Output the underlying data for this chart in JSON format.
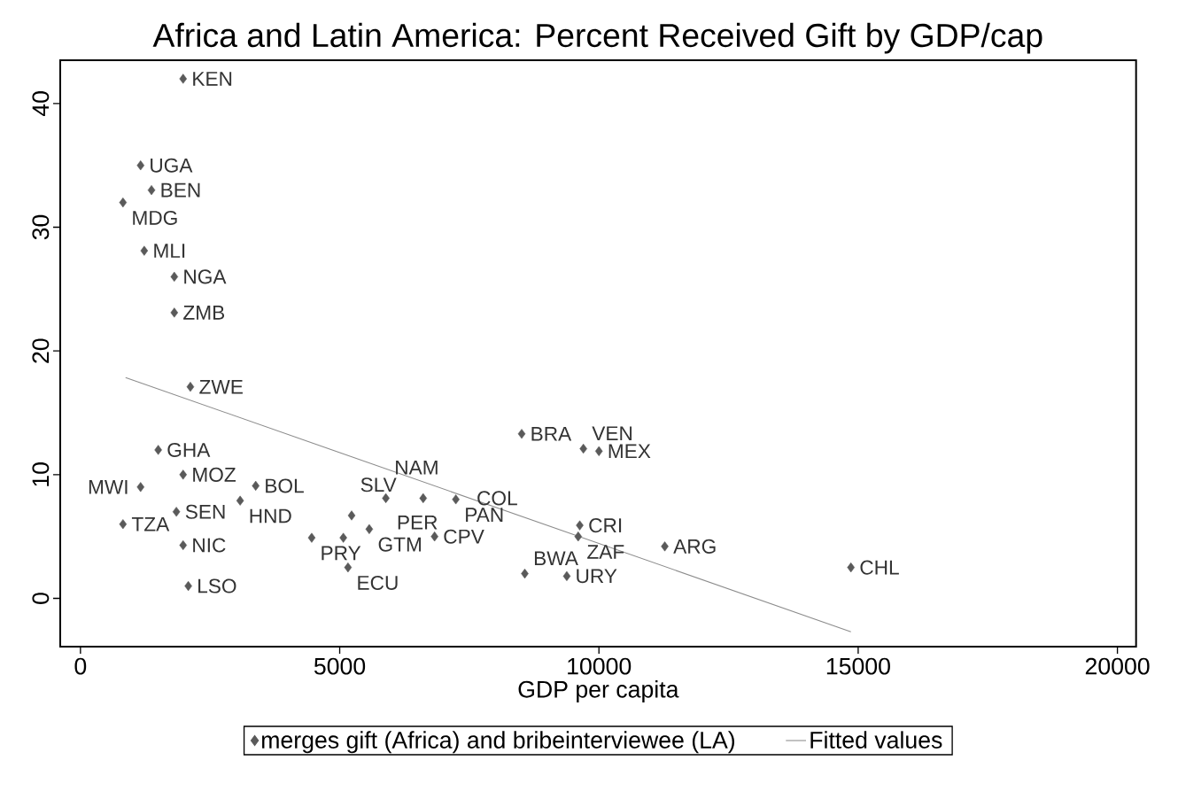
{
  "chart_data": {
    "type": "scatter",
    "title": "Africa and Latin America: Percent Received Gift by GDP/cap",
    "xlabel": "GDP per capita",
    "xlim": [
      -390,
      20360
    ],
    "ylim": [
      -3.9,
      43.5
    ],
    "xticks": [
      0,
      5000,
      10000,
      15000,
      20000
    ],
    "yticks": [
      0,
      10,
      20,
      30,
      40
    ],
    "legend": "bottom",
    "marker": "diamond",
    "series": [
      {
        "name": "merges gift (Africa) and bribeinterviewee (LA)",
        "color": "#5a5a5a",
        "x": [
          1980,
          1160,
          1370,
          820,
          1230,
          1810,
          1810,
          2120,
          1500,
          1980,
          1160,
          3380,
          3080,
          1850,
          820,
          1980,
          2080,
          4460,
          5070,
          5570,
          5230,
          5160,
          5890,
          6610,
          7240,
          6830,
          8510,
          9700,
          10000,
          9630,
          9600,
          11270,
          8570,
          9380,
          14860
        ],
        "values": [
          42.0,
          35.0,
          33.0,
          32.0,
          28.1,
          26.0,
          23.1,
          17.1,
          12.0,
          10.0,
          9.0,
          9.1,
          7.9,
          7.0,
          6.0,
          4.3,
          1.0,
          4.9,
          4.9,
          5.6,
          6.7,
          2.5,
          8.1,
          8.1,
          8.0,
          5.0,
          13.3,
          12.1,
          11.9,
          5.9,
          5.0,
          4.2,
          2.0,
          1.8,
          2.5
        ]
      },
      {
        "name": "Fitted values",
        "type": "line",
        "color": "#8c8c8c",
        "marker": "none",
        "line_style": "solid",
        "x": [
          870,
          14860
        ],
        "values": [
          17.85,
          -2.7
        ]
      }
    ],
    "annotations": [
      {
        "text": "KEN",
        "x": 1980,
        "y": 42.0
      },
      {
        "text": "UGA",
        "x": 1160,
        "y": 35.0
      },
      {
        "text": "BEN",
        "x": 1370,
        "y": 33.0
      },
      {
        "text": "MDG",
        "x": 820,
        "y": 32.0
      },
      {
        "text": "MLI",
        "x": 1230,
        "y": 28.1
      },
      {
        "text": "NGA",
        "x": 1810,
        "y": 26.0
      },
      {
        "text": "ZMB",
        "x": 1810,
        "y": 23.1
      },
      {
        "text": "ZWE",
        "x": 2120,
        "y": 17.1
      },
      {
        "text": "GHA",
        "x": 1500,
        "y": 12.0
      },
      {
        "text": "MOZ",
        "x": 1980,
        "y": 10.0
      },
      {
        "text": "MWI",
        "x": 1160,
        "y": 9.0
      },
      {
        "text": "BOL",
        "x": 3380,
        "y": 9.1
      },
      {
        "text": "HND",
        "x": 3080,
        "y": 7.9
      },
      {
        "text": "SEN",
        "x": 1850,
        "y": 7.0
      },
      {
        "text": "TZA",
        "x": 820,
        "y": 6.0
      },
      {
        "text": "NIC",
        "x": 1980,
        "y": 4.3
      },
      {
        "text": "LSO",
        "x": 2080,
        "y": 1.0
      },
      {
        "text": "PRY",
        "x": 4460,
        "y": 4.9
      },
      {
        "text": "PER",
        "x": 5070,
        "y": 4.9
      },
      {
        "text": "GTM",
        "x": 5570,
        "y": 5.6
      },
      {
        "text": "SLV",
        "x": 5230,
        "y": 6.7
      },
      {
        "text": "ECU",
        "x": 5160,
        "y": 2.5
      },
      {
        "text": "NAM",
        "x": 5890,
        "y": 8.1
      },
      {
        "text": "COL",
        "x": 6610,
        "y": 8.1
      },
      {
        "text": "PAN",
        "x": 7240,
        "y": 8.0
      },
      {
        "text": "CPV",
        "x": 6830,
        "y": 5.0
      },
      {
        "text": "BRA",
        "x": 8510,
        "y": 13.3
      },
      {
        "text": "VEN",
        "x": 9700,
        "y": 12.1
      },
      {
        "text": "MEX",
        "x": 10000,
        "y": 11.9
      },
      {
        "text": "CRI",
        "x": 9630,
        "y": 5.9
      },
      {
        "text": "ZAF",
        "x": 9600,
        "y": 5.0
      },
      {
        "text": "ARG",
        "x": 11270,
        "y": 4.2
      },
      {
        "text": "BWA",
        "x": 8570,
        "y": 2.0
      },
      {
        "text": "URY",
        "x": 9380,
        "y": 1.8
      },
      {
        "text": "CHL",
        "x": 14860,
        "y": 2.5
      }
    ]
  }
}
